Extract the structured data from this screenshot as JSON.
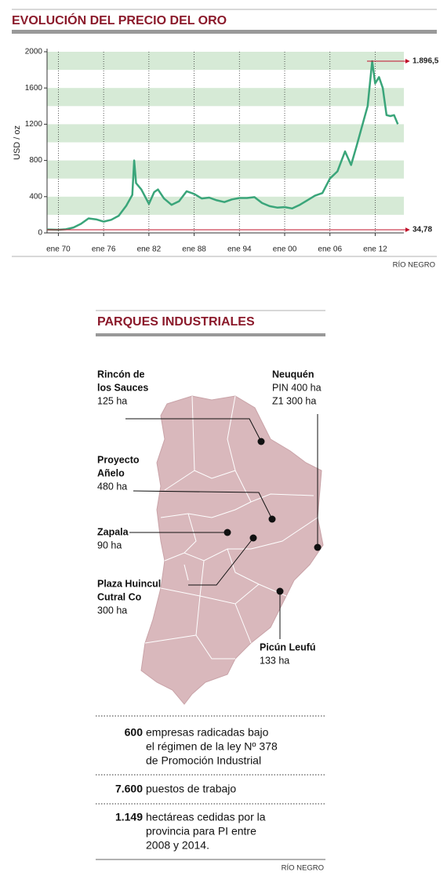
{
  "chart_data": {
    "type": "line",
    "title": "EVOLUCIÓN DEL PRECIO DEL ORO",
    "y_label": "USD / oz",
    "x": [
      1968.5,
      1970,
      1971,
      1972,
      1973,
      1974,
      1975,
      1976,
      1977,
      1978,
      1979,
      1979.8,
      1980.05,
      1980.3,
      1981,
      1982,
      1982.7,
      1983.2,
      1984,
      1985,
      1986,
      1987,
      1988,
      1989,
      1990,
      1991,
      1992,
      1993,
      1994,
      1995,
      1996,
      1997,
      1998,
      1999,
      2000,
      2001,
      2002,
      2003,
      2004,
      2005,
      2006,
      2007,
      2008,
      2008.8,
      2009.5,
      2010,
      2010.5,
      2011,
      2011.6,
      2012,
      2012.5,
      2013,
      2013.5,
      2014,
      2014.5,
      2015
    ],
    "values": [
      38,
      35,
      40,
      60,
      100,
      160,
      150,
      125,
      145,
      190,
      300,
      420,
      800,
      550,
      480,
      320,
      450,
      480,
      380,
      310,
      350,
      460,
      430,
      380,
      390,
      360,
      340,
      370,
      385,
      385,
      395,
      330,
      295,
      280,
      285,
      270,
      310,
      360,
      410,
      440,
      600,
      680,
      900,
      750,
      950,
      1100,
      1250,
      1400,
      1896.5,
      1650,
      1720,
      1600,
      1300,
      1290,
      1300,
      1200
    ],
    "color": "#3aa57a",
    "xlim": [
      1968.5,
      2015.8
    ],
    "xticks": [
      {
        "value": 1970,
        "label": "ene 70"
      },
      {
        "value": 1976,
        "label": "ene 76"
      },
      {
        "value": 1982,
        "label": "ene 82"
      },
      {
        "value": 1988,
        "label": "ene 88"
      },
      {
        "value": 1994,
        "label": "ene 94"
      },
      {
        "value": 2000,
        "label": "ene 00"
      },
      {
        "value": 2006,
        "label": "ene 06"
      },
      {
        "value": 2012,
        "label": "ene 12"
      }
    ],
    "ylim": [
      0,
      2000
    ],
    "yticks": [
      0,
      400,
      800,
      1200,
      1600,
      2000
    ],
    "grid": true,
    "annotations": [
      {
        "value": 1896.5,
        "label": "1.896,5"
      },
      {
        "value": 34.78,
        "label": "34,78"
      }
    ],
    "source": "RÍO NEGRO"
  },
  "map": {
    "title": "PARQUES INDUSTRIALES",
    "parks": [
      {
        "name": [
          "Rincón de",
          "los Sauces"
        ],
        "detail": [
          "125 ha"
        ]
      },
      {
        "name": [
          "Neuquén"
        ],
        "detail": [
          "PIN 400 ha",
          "Z1 300 ha"
        ]
      },
      {
        "name": [
          "Proyecto",
          "Añelo"
        ],
        "detail": [
          "480 ha"
        ]
      },
      {
        "name": [
          "Zapala"
        ],
        "detail": [
          "90 ha"
        ]
      },
      {
        "name": [
          "Plaza Huincul",
          "Cutral Co"
        ],
        "detail": [
          "300 ha"
        ]
      },
      {
        "name": [
          "Picún Leufú"
        ],
        "detail": [
          "133 ha"
        ]
      }
    ],
    "stats": [
      {
        "number": "600",
        "text": [
          "empresas radicadas bajo",
          "el régimen de la ley Nº 378",
          "de Promoción Industrial"
        ]
      },
      {
        "number": "7.600",
        "text": [
          "puestos de trabajo"
        ]
      },
      {
        "number": "1.149",
        "text": [
          "hectáreas cedidas por la",
          "provincia para PI entre",
          "2008 y 2014."
        ]
      }
    ],
    "source": "RÍO NEGRO"
  }
}
